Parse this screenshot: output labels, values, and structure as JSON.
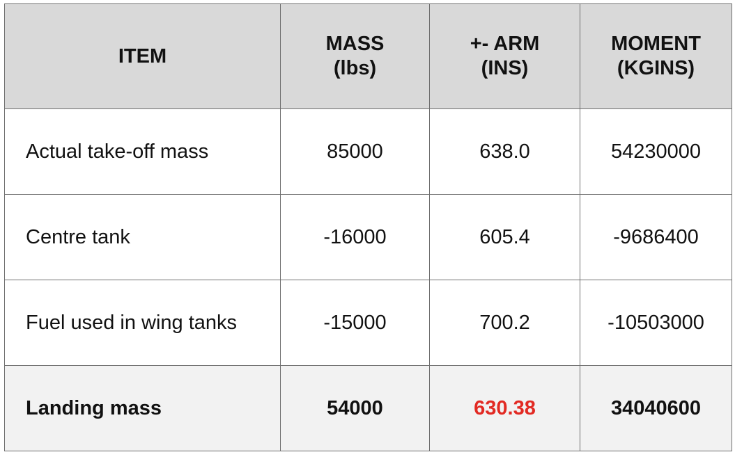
{
  "table": {
    "headers": [
      {
        "lines": [
          "ITEM"
        ]
      },
      {
        "lines": [
          "MASS",
          "(lbs)"
        ]
      },
      {
        "lines": [
          "+- ARM",
          "(INS)"
        ]
      },
      {
        "lines": [
          "MOMENT",
          "(KGINS)"
        ]
      }
    ],
    "rows": [
      {
        "item": "Actual take-off mass",
        "mass": "85000",
        "arm": "638.0",
        "moment": "54230000"
      },
      {
        "item": "Centre tank",
        "mass": "-16000",
        "arm": "605.4",
        "moment": "-9686400"
      },
      {
        "item": "Fuel used in wing tanks",
        "mass": "-15000",
        "arm": "700.2",
        "moment": "-10503000"
      }
    ],
    "total": {
      "item": "Landing mass",
      "mass": "54000",
      "arm": "630.38",
      "moment": "34040600"
    }
  },
  "colors": {
    "header_bg": "#d9d9d9",
    "total_bg": "#f2f2f2",
    "border": "#6e6e6e",
    "highlight": "#e22a23"
  }
}
